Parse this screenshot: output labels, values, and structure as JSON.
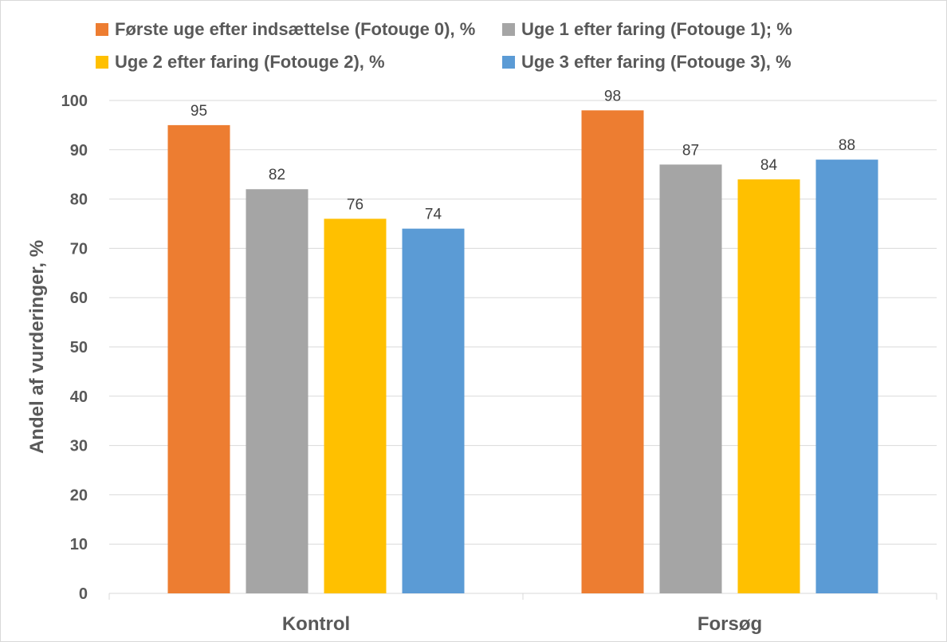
{
  "chart_data": {
    "type": "bar",
    "title": "",
    "xlabel": "",
    "ylabel": "Andel af vurderinger, %",
    "ylim": [
      0,
      100
    ],
    "yticks": [
      0,
      10,
      20,
      30,
      40,
      50,
      60,
      70,
      80,
      90,
      100
    ],
    "grid": true,
    "legend_position": "top",
    "categories": [
      "Kontrol",
      "Forsøg"
    ],
    "series": [
      {
        "name": "Første uge efter indsættelse (Fotouge 0), %",
        "color": "#ED7D31",
        "values": [
          95,
          98
        ],
        "labels": [
          "95",
          "98"
        ]
      },
      {
        "name": "Uge 1 efter faring (Fotouge 1); %",
        "color": "#A5A5A5",
        "values": [
          82,
          87
        ],
        "labels": [
          "82",
          "87"
        ]
      },
      {
        "name": "Uge 2 efter faring (Fotouge 2), %",
        "color": "#FFC000",
        "values": [
          76,
          84
        ],
        "labels": [
          "76",
          "84"
        ]
      },
      {
        "name": "Uge 3 efter faring (Fotouge 3), %",
        "color": "#5B9BD5",
        "values": [
          74,
          88
        ],
        "labels": [
          "74",
          "88"
        ]
      }
    ]
  }
}
